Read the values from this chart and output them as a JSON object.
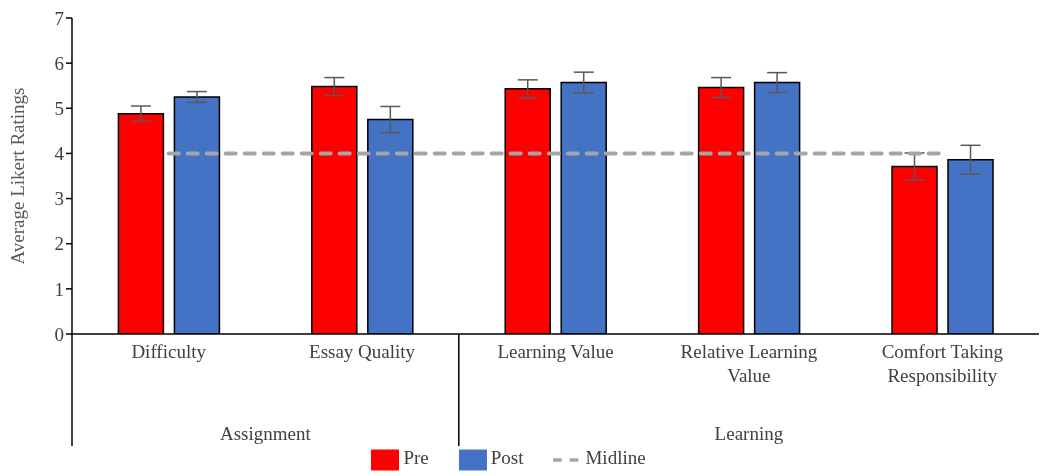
{
  "chart_data": {
    "type": "bar",
    "ylabel": "Average Likert Ratings",
    "categories": [
      "Difficulty",
      "Essay Quality",
      "Learning Value",
      "Relative Learning Value",
      "Comfort Taking Responsibility"
    ],
    "series": [
      {
        "name": "Pre",
        "color": "#ff0000",
        "values": [
          4.88,
          5.48,
          5.43,
          5.46,
          3.71
        ],
        "errors": [
          0.17,
          0.2,
          0.2,
          0.22,
          0.3
        ]
      },
      {
        "name": "Post",
        "color": "#4472c4",
        "values": [
          5.25,
          4.75,
          5.57,
          5.57,
          3.86
        ],
        "errors": [
          0.12,
          0.29,
          0.23,
          0.22,
          0.32
        ]
      },
      {
        "name": "Midline",
        "type": "line",
        "color": "#a5a5a5",
        "values": [
          4,
          4,
          4,
          4,
          4
        ],
        "line_style": "dashed",
        "marker": "none"
      }
    ],
    "annotations": [
      "Assignment",
      "Learning"
    ],
    "ylim": [
      0,
      7
    ],
    "yticks": [
      0,
      1,
      2,
      3,
      4,
      5,
      6,
      7
    ],
    "legend": "bottom"
  }
}
